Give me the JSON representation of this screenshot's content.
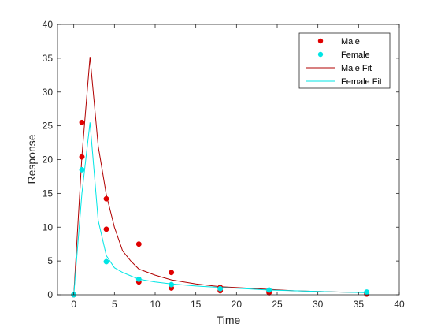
{
  "chart_data": {
    "type": "scatter",
    "title": "",
    "xlabel": "Time",
    "ylabel": "Response",
    "xlim": [
      -2,
      40
    ],
    "ylim": [
      0,
      40
    ],
    "xticks": [
      0,
      5,
      10,
      15,
      20,
      25,
      30,
      35,
      40
    ],
    "yticks": [
      0,
      5,
      10,
      15,
      20,
      25,
      30,
      35,
      40
    ],
    "grid": false,
    "legend_position": "top-right",
    "series": [
      {
        "name": "Male",
        "kind": "points",
        "color": "#e00000",
        "x": [
          0,
          1,
          1,
          4,
          4,
          8,
          8,
          12,
          12,
          18,
          18,
          24,
          24,
          36,
          36
        ],
        "y": [
          0,
          20.4,
          25.5,
          14.2,
          9.7,
          7.5,
          1.9,
          3.3,
          1.0,
          1.1,
          0.6,
          0.5,
          0.3,
          0.3,
          0.1
        ]
      },
      {
        "name": "Female",
        "kind": "points",
        "color": "#00e5e5",
        "x": [
          0,
          1,
          4,
          8,
          12,
          18,
          24,
          36
        ],
        "y": [
          0,
          18.5,
          4.9,
          2.3,
          1.5,
          0.9,
          0.7,
          0.4
        ]
      },
      {
        "name": "Male Fit",
        "kind": "line",
        "color": "#b00000",
        "x": [
          0,
          1,
          2,
          3,
          4,
          5,
          6,
          7,
          8,
          10,
          12,
          15,
          18,
          21,
          24,
          27,
          30,
          33,
          36
        ],
        "y": [
          0,
          20.5,
          35.2,
          22,
          14.8,
          10,
          6.5,
          5,
          3.8,
          2.9,
          2.2,
          1.6,
          1.2,
          1.0,
          0.8,
          0.6,
          0.5,
          0.4,
          0.35
        ]
      },
      {
        "name": "Female Fit",
        "kind": "line",
        "color": "#00e5e5",
        "x": [
          0,
          1,
          2,
          3,
          4,
          5,
          6,
          7,
          8,
          10,
          12,
          15,
          18,
          21,
          24,
          27,
          30,
          33,
          36
        ],
        "y": [
          0,
          15,
          25.5,
          11,
          5.8,
          4,
          3.3,
          2.8,
          2.3,
          1.9,
          1.6,
          1.3,
          1.1,
          0.9,
          0.7,
          0.6,
          0.5,
          0.4,
          0.3
        ]
      }
    ]
  }
}
